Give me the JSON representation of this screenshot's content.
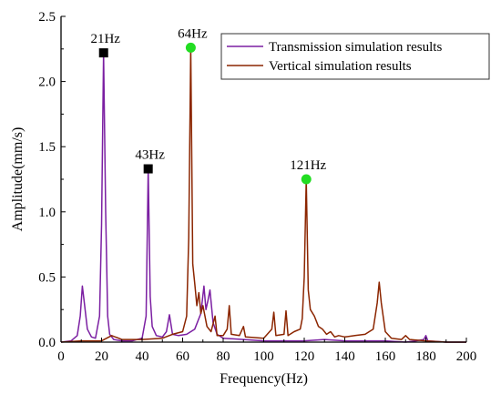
{
  "chart_data": {
    "type": "line",
    "title": "",
    "xlabel": "Frequency(Hz)",
    "ylabel": "Amplitude(mm/s)",
    "xlim": [
      0,
      200
    ],
    "ylim": [
      0,
      2.5
    ],
    "xticks": [
      0,
      20,
      40,
      60,
      80,
      100,
      120,
      140,
      160,
      180,
      200
    ],
    "yticks": [
      0.0,
      0.5,
      1.0,
      1.5,
      2.0,
      2.5
    ],
    "xtick_labels": [
      "0",
      "20",
      "40",
      "60",
      "80",
      "100",
      "120",
      "140",
      "160",
      "180",
      "200"
    ],
    "ytick_labels": [
      "0.0",
      "0.5",
      "1.0",
      "1.5",
      "2.0",
      "2.5"
    ],
    "grid": false,
    "legend_position": "top-right",
    "series": [
      {
        "name": "Transmission simulation results",
        "color": "#7B1FA2",
        "points": [
          [
            0,
            0.0
          ],
          [
            5,
            0.01
          ],
          [
            8,
            0.05
          ],
          [
            9.5,
            0.2
          ],
          [
            10.5,
            0.43
          ],
          [
            11.5,
            0.3
          ],
          [
            13,
            0.1
          ],
          [
            15,
            0.04
          ],
          [
            17,
            0.03
          ],
          [
            19,
            0.2
          ],
          [
            20,
            0.9
          ],
          [
            21,
            2.22
          ],
          [
            22,
            1.0
          ],
          [
            23,
            0.2
          ],
          [
            24,
            0.06
          ],
          [
            26,
            0.02
          ],
          [
            30,
            0.01
          ],
          [
            35,
            0.01
          ],
          [
            40,
            0.03
          ],
          [
            42,
            0.2
          ],
          [
            43,
            1.33
          ],
          [
            44,
            0.35
          ],
          [
            45,
            0.12
          ],
          [
            47,
            0.05
          ],
          [
            50,
            0.04
          ],
          [
            52,
            0.08
          ],
          [
            53.5,
            0.21
          ],
          [
            55,
            0.06
          ],
          [
            58,
            0.05
          ],
          [
            62,
            0.06
          ],
          [
            66,
            0.1
          ],
          [
            69,
            0.22
          ],
          [
            70.5,
            0.43
          ],
          [
            71.5,
            0.25
          ],
          [
            72.5,
            0.32
          ],
          [
            73.5,
            0.4
          ],
          [
            75,
            0.15
          ],
          [
            77,
            0.06
          ],
          [
            80,
            0.03
          ],
          [
            90,
            0.02
          ],
          [
            100,
            0.01
          ],
          [
            110,
            0.01
          ],
          [
            120,
            0.01
          ],
          [
            130,
            0.02
          ],
          [
            140,
            0.01
          ],
          [
            160,
            0.01
          ],
          [
            170,
            0.0
          ],
          [
            175,
            0.01
          ],
          [
            179,
            0.02
          ],
          [
            180,
            0.05
          ],
          [
            181,
            0.01
          ],
          [
            190,
            0.0
          ],
          [
            200,
            0.0
          ]
        ]
      },
      {
        "name": "Vertical simulation results",
        "color": "#8B2500",
        "points": [
          [
            0,
            0.0
          ],
          [
            10,
            0.01
          ],
          [
            20,
            0.01
          ],
          [
            25,
            0.05
          ],
          [
            30,
            0.02
          ],
          [
            40,
            0.02
          ],
          [
            50,
            0.03
          ],
          [
            55,
            0.06
          ],
          [
            60,
            0.08
          ],
          [
            62,
            0.2
          ],
          [
            63,
            0.8
          ],
          [
            64,
            2.26
          ],
          [
            65,
            0.6
          ],
          [
            66,
            0.45
          ],
          [
            67,
            0.28
          ],
          [
            68,
            0.38
          ],
          [
            69,
            0.22
          ],
          [
            70,
            0.28
          ],
          [
            72,
            0.12
          ],
          [
            74,
            0.08
          ],
          [
            76,
            0.2
          ],
          [
            77,
            0.05
          ],
          [
            80,
            0.05
          ],
          [
            82,
            0.1
          ],
          [
            83,
            0.28
          ],
          [
            84,
            0.06
          ],
          [
            88,
            0.05
          ],
          [
            90,
            0.12
          ],
          [
            91,
            0.04
          ],
          [
            100,
            0.03
          ],
          [
            104,
            0.1
          ],
          [
            105,
            0.23
          ],
          [
            106,
            0.05
          ],
          [
            110,
            0.06
          ],
          [
            111,
            0.24
          ],
          [
            112,
            0.05
          ],
          [
            115,
            0.08
          ],
          [
            118,
            0.1
          ],
          [
            119,
            0.18
          ],
          [
            120,
            0.5
          ],
          [
            121,
            1.25
          ],
          [
            122,
            0.4
          ],
          [
            123,
            0.25
          ],
          [
            125,
            0.2
          ],
          [
            127,
            0.12
          ],
          [
            129,
            0.1
          ],
          [
            131,
            0.06
          ],
          [
            133,
            0.08
          ],
          [
            135,
            0.04
          ],
          [
            137,
            0.05
          ],
          [
            140,
            0.04
          ],
          [
            145,
            0.05
          ],
          [
            150,
            0.06
          ],
          [
            154,
            0.1
          ],
          [
            156,
            0.3
          ],
          [
            157,
            0.46
          ],
          [
            158,
            0.3
          ],
          [
            160,
            0.08
          ],
          [
            163,
            0.03
          ],
          [
            168,
            0.02
          ],
          [
            170,
            0.05
          ],
          [
            172,
            0.02
          ],
          [
            180,
            0.01
          ],
          [
            190,
            0.0
          ],
          [
            200,
            0.0
          ]
        ]
      }
    ],
    "annotations": [
      {
        "text": "21Hz",
        "x": 21,
        "y": 2.22,
        "marker": "square",
        "marker_color": "#000000"
      },
      {
        "text": "43Hz",
        "x": 43,
        "y": 1.33,
        "marker": "square",
        "marker_color": "#000000"
      },
      {
        "text": "64Hz",
        "x": 64,
        "y": 2.26,
        "marker": "circle",
        "marker_color": "#22DD22"
      },
      {
        "text": "121Hz",
        "x": 121,
        "y": 1.25,
        "marker": "circle",
        "marker_color": "#22DD22"
      }
    ]
  }
}
